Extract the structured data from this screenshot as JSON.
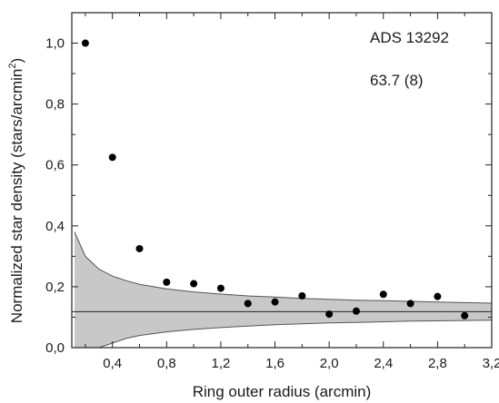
{
  "chart_data": {
    "type": "scatter",
    "title": "",
    "xlabel": "Ring outer radius (arcmin)",
    "ylabel_main": "Normalized star density (stars/arcmin",
    "ylabel_sup": "2",
    "ylabel_close": ")",
    "xlim": [
      0.1,
      3.2
    ],
    "ylim": [
      0.0,
      1.1
    ],
    "xticks": [
      0.4,
      0.8,
      1.2,
      1.6,
      2.0,
      2.4,
      2.8,
      3.2
    ],
    "xtick_labels": [
      "0,4",
      "0,8",
      "1,2",
      "1,6",
      "2,0",
      "2,4",
      "2,8",
      "3,2"
    ],
    "yticks": [
      0.0,
      0.2,
      0.4,
      0.6,
      0.8,
      1.0
    ],
    "ytick_labels": [
      "0,0",
      "0,2",
      "0,4",
      "0,6",
      "0,8",
      "1,0"
    ],
    "grid": false,
    "series": [
      {
        "x": [
          0.2,
          0.4,
          0.6,
          0.8,
          1.0,
          1.2,
          1.4,
          1.6,
          1.8,
          2.0,
          2.2,
          2.4,
          2.6,
          2.8,
          3.0
        ],
        "y": [
          1.0,
          0.625,
          0.325,
          0.215,
          0.21,
          0.195,
          0.145,
          0.15,
          0.17,
          0.11,
          0.12,
          0.175,
          0.145,
          0.168,
          0.105
        ]
      }
    ],
    "background_level": 0.118,
    "background_band": {
      "x": [
        0.12,
        0.2,
        0.3,
        0.4,
        0.5,
        0.6,
        0.8,
        1.0,
        1.2,
        1.4,
        1.6,
        1.8,
        2.0,
        2.2,
        2.4,
        2.6,
        2.8,
        3.0,
        3.2
      ],
      "upper": [
        0.38,
        0.3,
        0.258,
        0.235,
        0.22,
        0.208,
        0.193,
        0.183,
        0.176,
        0.17,
        0.166,
        0.162,
        0.159,
        0.156,
        0.154,
        0.152,
        0.15,
        0.148,
        0.146
      ],
      "lower": [
        0.0,
        0.0,
        0.0,
        0.015,
        0.03,
        0.04,
        0.052,
        0.06,
        0.066,
        0.071,
        0.075,
        0.078,
        0.081,
        0.083,
        0.085,
        0.087,
        0.088,
        0.089,
        0.09
      ]
    },
    "annotations": [
      "ADS 13292",
      "63.7 (8)"
    ],
    "colors": {
      "band_fill": "#c8c8c8",
      "line": "#222222",
      "point": "#000000",
      "axis": "#222222"
    }
  }
}
